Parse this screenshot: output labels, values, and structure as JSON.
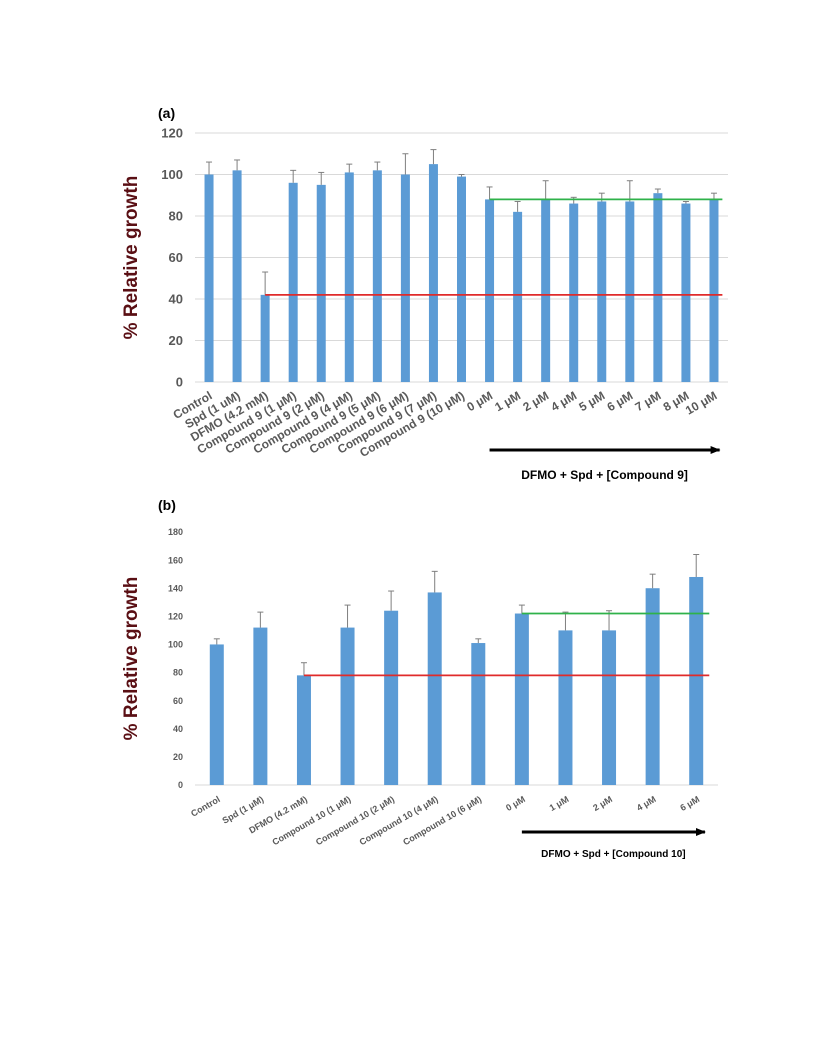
{
  "colors": {
    "bar": "#5b9bd5",
    "error": "#7f7f7f",
    "grid": "#d9d9d9",
    "axis_text": "#595959",
    "ylabel": "#5a0f14",
    "green_line": "#2fb24a",
    "red_line": "#e02b2b",
    "arrow": "#000000"
  },
  "chart_data": [
    {
      "type": "bar",
      "panel_label": "(a)",
      "ylabel": "% Relative growth",
      "ylim": [
        0,
        120
      ],
      "yticks": [
        0,
        20,
        40,
        60,
        80,
        100,
        120
      ],
      "grid": true,
      "categories": [
        "Control",
        "Spd (1 uM)",
        "DFMO (4.2 mM)",
        "Compound 9 (1 μM)",
        "Compound 9 (2 μM)",
        "Compound 9 (4 μM)",
        "Compound 9 (5 μM)",
        "Compound 9 (6 μM)",
        "Compound 9 (7 μM)",
        "Compound 9 (10 μM)",
        "0 μM",
        "1 μM",
        "2 μM",
        "4 μM",
        "5 μM",
        "6 μM",
        "7 μM",
        "8 μM",
        "10 μM"
      ],
      "values": [
        100,
        102,
        42,
        96,
        95,
        101,
        102,
        100,
        105,
        99,
        88,
        82,
        88,
        86,
        87,
        87,
        91,
        86,
        88
      ],
      "errors": [
        6,
        5,
        11,
        6,
        6,
        4,
        4,
        10,
        7,
        1,
        6,
        5,
        9,
        3,
        4,
        10,
        2,
        1,
        3
      ],
      "reference_lines": [
        {
          "color": "green",
          "value": 88,
          "from_category": "0 μM",
          "to_category": "10 μM"
        },
        {
          "color": "red",
          "value": 42,
          "from_category": "DFMO (4.2 mM)",
          "to_category": "10 μM"
        }
      ],
      "bracket_label": "DFMO + Spd + [Compound 9]",
      "bracket_from": "0 μM",
      "bracket_to": "10 μM"
    },
    {
      "type": "bar",
      "panel_label": "(b)",
      "ylabel": "% Relative growth",
      "ylim": [
        0,
        180
      ],
      "yticks": [
        0,
        20,
        40,
        60,
        80,
        100,
        120,
        140,
        160,
        180
      ],
      "grid": false,
      "categories": [
        "Control",
        "Spd (1 μM)",
        "DFMO (4.2 mM)",
        "Compound 10 (1 μM)",
        "Compound 10 (2 μM)",
        "Compound 10 (4 μM)",
        "Compound 10 (6 μM)",
        "0 μM",
        "1 μM",
        "2 μM",
        "4 μM",
        "6 μM"
      ],
      "values": [
        100,
        112,
        78,
        112,
        124,
        137,
        101,
        122,
        110,
        110,
        140,
        148
      ],
      "errors": [
        4,
        11,
        9,
        16,
        14,
        15,
        3,
        6,
        13,
        14,
        10,
        16
      ],
      "reference_lines": [
        {
          "color": "green",
          "value": 122,
          "from_category": "0 μM",
          "to_category": "6 μM"
        },
        {
          "color": "red",
          "value": 78,
          "from_category": "DFMO (4.2 mM)",
          "to_category": "6 μM"
        }
      ],
      "bracket_label": "DFMO + Spd + [Compound 10]",
      "bracket_from": "0 μM",
      "bracket_to": "6 μM"
    }
  ]
}
